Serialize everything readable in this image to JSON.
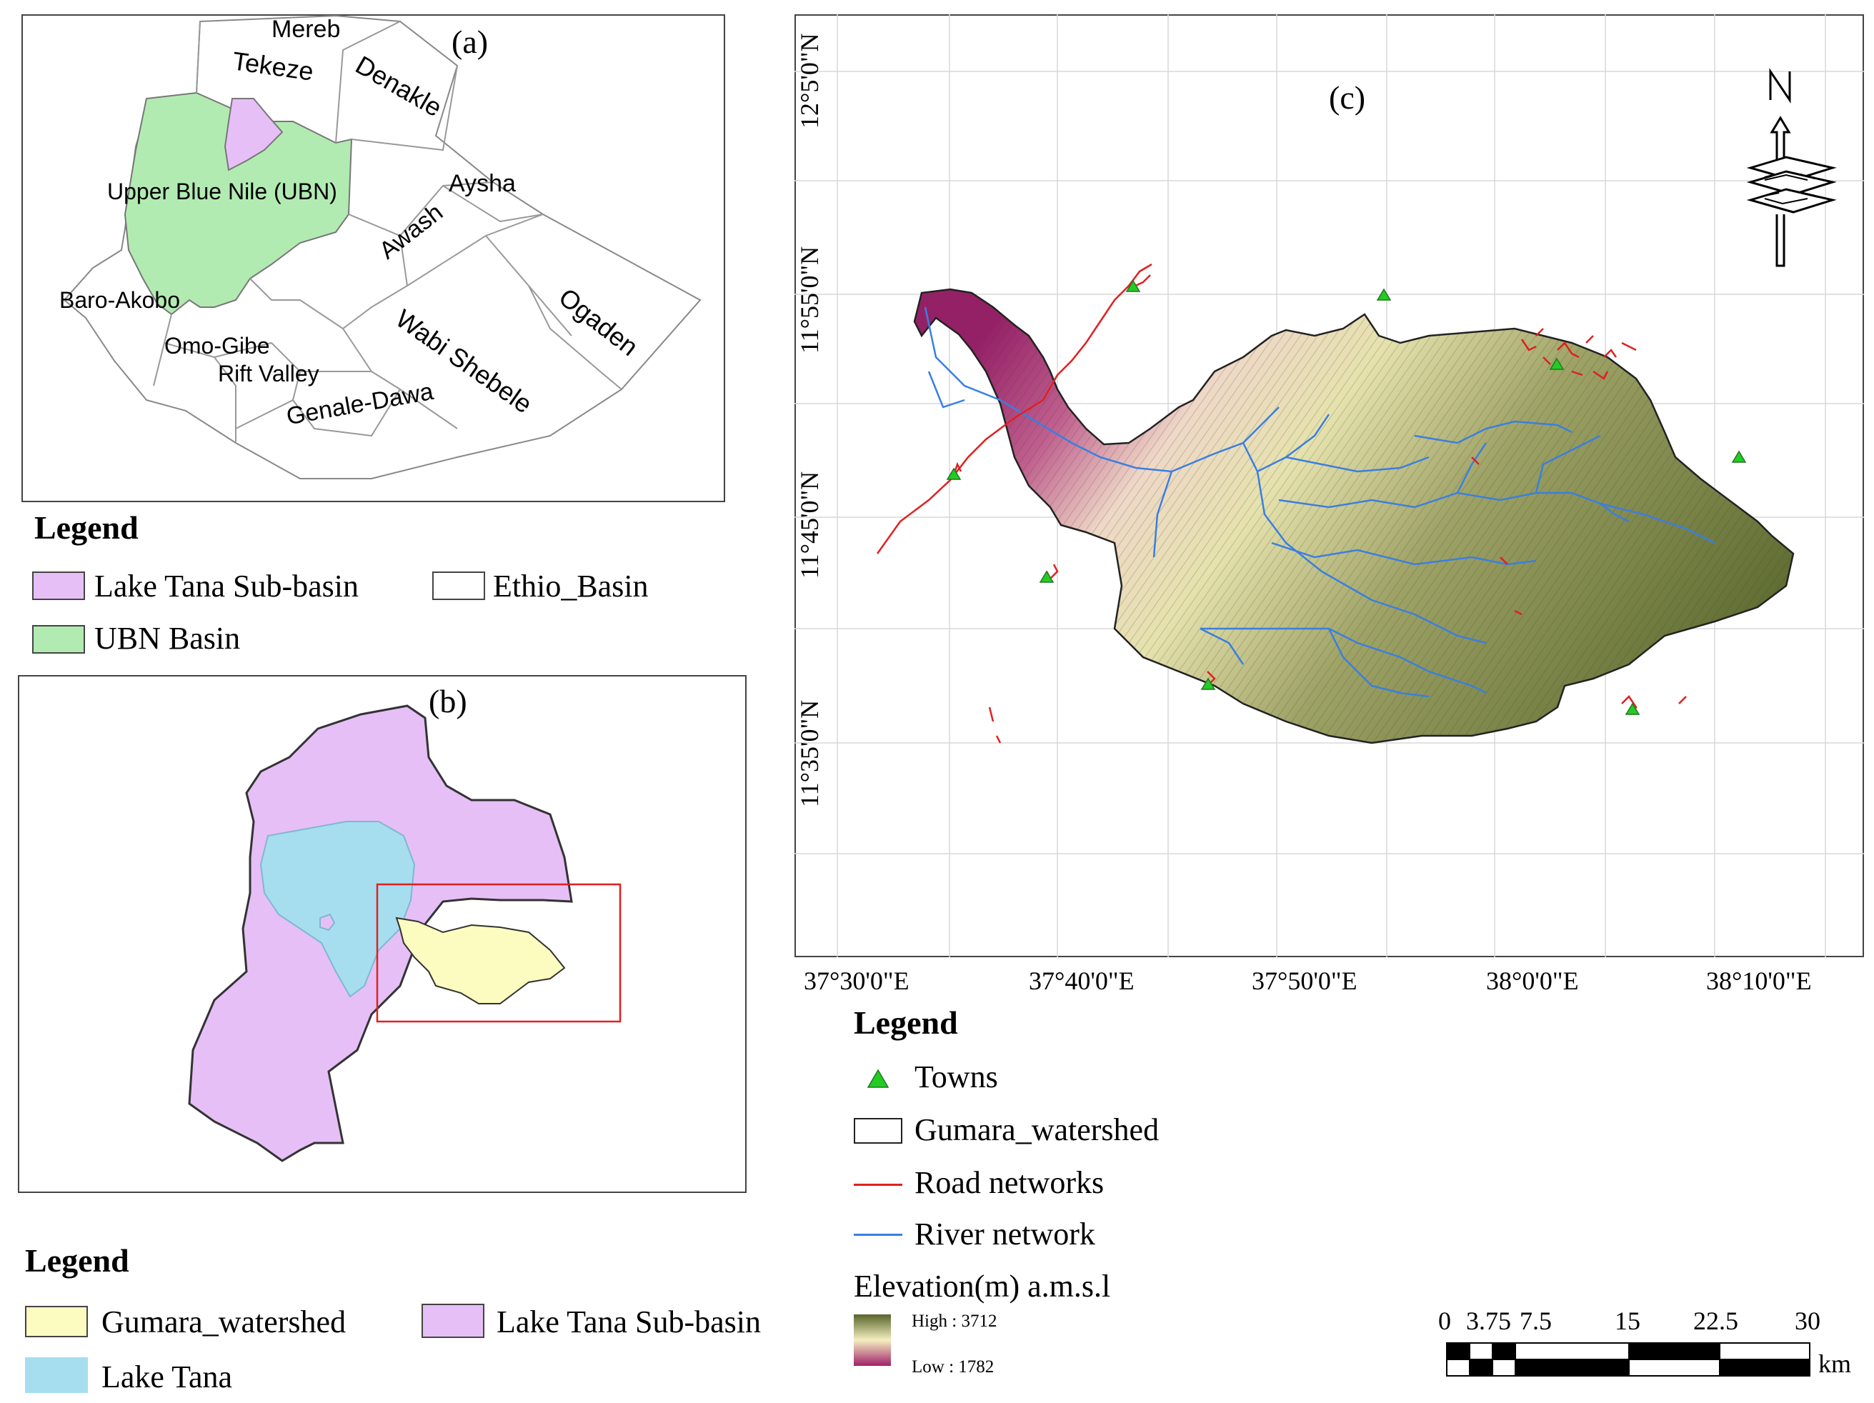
{
  "panel_a": {
    "label": "(a)",
    "basins": [
      "Mereb",
      "Tekeze",
      "Denakle",
      "Upper Blue Nile (UBN)",
      "Awash",
      "Aysha",
      "Baro-Akobo",
      "Wabi Shebele",
      "Ogaden",
      "Omo-Gibe",
      "Rift Valley",
      "Genale-Dawa"
    ],
    "legend": {
      "title": "Legend",
      "items": [
        {
          "label": "Lake Tana Sub-basin",
          "color": "#e6bff7"
        },
        {
          "label": "Ethio_Basin",
          "color": "#ffffff"
        },
        {
          "label": "UBN Basin",
          "color": "#b2ebb2"
        }
      ]
    }
  },
  "panel_b": {
    "label": "(b)",
    "legend": {
      "title": "Legend",
      "items": [
        {
          "label": "Gumara_watershed",
          "color": "#fcfcc0"
        },
        {
          "label": "Lake Tana Sub-basin",
          "color": "#e6bff7"
        },
        {
          "label": "Lake Tana",
          "color": "#a6def0"
        }
      ]
    }
  },
  "panel_c": {
    "label": "(c)",
    "lat_ticks": [
      "12°5'0\"N",
      "11°55'0\"N",
      "11°45'0\"N",
      "11°35'0\"N"
    ],
    "lon_ticks": [
      "37°30'0\"E",
      "37°40'0\"E",
      "37°50'0\"E",
      "38°0'0\"E",
      "38°10'0\"E"
    ],
    "legend": {
      "title": "Legend",
      "towns": "Towns",
      "watershed": "Gumara_watershed",
      "roads": "Road networks",
      "rivers": "River network",
      "elevation_title": "Elevation(m) a.m.s.l",
      "high": "High : 3712",
      "low": "Low : 1782"
    },
    "colors": {
      "town": "#22cc22",
      "road": "#e02020",
      "river": "#3a7fe0",
      "elev_high": "#58642a",
      "elev_mid": "#f4efc0",
      "elev_low": "#a0206a"
    },
    "scale_bar": {
      "ticks": [
        "0",
        "3.75",
        "7.5",
        "15",
        "22.5",
        "30"
      ],
      "unit": "km"
    },
    "north_arrow": "N"
  }
}
